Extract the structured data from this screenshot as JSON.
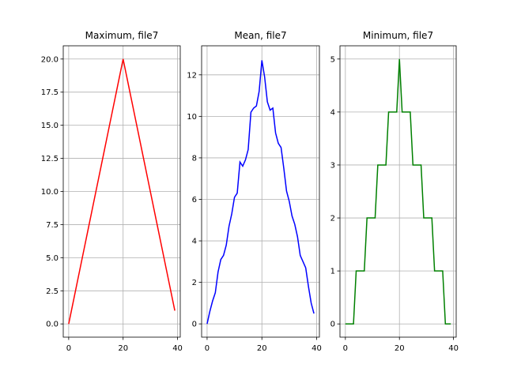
{
  "chart_data": [
    {
      "type": "line",
      "title": "Maximum, file7",
      "xlabel": "",
      "ylabel": "",
      "grid": true,
      "color": "#ff0000",
      "xlim": [
        -2,
        41
      ],
      "ylim": [
        -1,
        21
      ],
      "xticks": [
        0,
        20,
        40
      ],
      "yticks": [
        0.0,
        2.5,
        5.0,
        7.5,
        10.0,
        12.5,
        15.0,
        17.5,
        20.0
      ],
      "ytick_labels": [
        "0.0",
        "2.5",
        "5.0",
        "7.5",
        "10.0",
        "12.5",
        "15.0",
        "17.5",
        "20.0"
      ],
      "series": [
        {
          "x": [
            0,
            1,
            2,
            3,
            4,
            5,
            6,
            7,
            8,
            9,
            10,
            11,
            12,
            13,
            14,
            15,
            16,
            17,
            18,
            19,
            20,
            21,
            22,
            23,
            24,
            25,
            26,
            27,
            28,
            29,
            30,
            31,
            32,
            33,
            34,
            35,
            36,
            37,
            38,
            39
          ],
          "values": [
            0,
            1,
            2,
            3,
            4,
            5,
            6,
            7,
            8,
            9,
            10,
            11,
            12,
            13,
            14,
            15,
            16,
            17,
            18,
            19,
            20,
            19,
            18,
            17,
            16,
            15,
            14,
            13,
            12,
            11,
            10,
            9,
            8,
            7,
            6,
            5,
            4,
            3,
            2,
            1
          ]
        }
      ]
    },
    {
      "type": "line",
      "title": "Mean, file7",
      "xlabel": "",
      "ylabel": "",
      "grid": true,
      "color": "#0000ff",
      "xlim": [
        -2,
        41
      ],
      "ylim": [
        -0.64,
        13.4
      ],
      "xticks": [
        0,
        20,
        40
      ],
      "yticks": [
        0,
        2,
        4,
        6,
        8,
        10,
        12
      ],
      "ytick_labels": [
        "0",
        "2",
        "4",
        "6",
        "8",
        "10",
        "12"
      ],
      "series": [
        {
          "x": [
            0,
            1,
            2,
            3,
            4,
            5,
            6,
            7,
            8,
            9,
            10,
            11,
            12,
            13,
            14,
            15,
            16,
            17,
            18,
            19,
            20,
            21,
            22,
            23,
            24,
            25,
            26,
            27,
            28,
            29,
            30,
            31,
            32,
            33,
            34,
            35,
            36,
            37,
            38,
            39
          ],
          "values": [
            0,
            0.6,
            1.1,
            1.5,
            2.5,
            3.1,
            3.3,
            3.8,
            4.7,
            5.3,
            6.1,
            6.3,
            7.8,
            7.6,
            7.9,
            8.4,
            10.2,
            10.4,
            10.5,
            11.2,
            12.7,
            11.9,
            10.7,
            10.3,
            10.4,
            9.2,
            8.7,
            8.5,
            7.5,
            6.4,
            5.9,
            5.2,
            4.8,
            4.2,
            3.3,
            3.0,
            2.7,
            1.8,
            1.0,
            0.5
          ]
        }
      ]
    },
    {
      "type": "line",
      "title": "Minimum, file7",
      "xlabel": "",
      "ylabel": "",
      "grid": true,
      "color": "#008000",
      "xlim": [
        -2,
        41
      ],
      "ylim": [
        -0.25,
        5.25
      ],
      "xticks": [
        0,
        20,
        40
      ],
      "yticks": [
        0,
        1,
        2,
        3,
        4,
        5
      ],
      "ytick_labels": [
        "0",
        "1",
        "2",
        "3",
        "4",
        "5"
      ],
      "series": [
        {
          "x": [
            0,
            1,
            2,
            3,
            4,
            5,
            6,
            7,
            8,
            9,
            10,
            11,
            12,
            13,
            14,
            15,
            16,
            17,
            18,
            19,
            20,
            21,
            22,
            23,
            24,
            25,
            26,
            27,
            28,
            29,
            30,
            31,
            32,
            33,
            34,
            35,
            36,
            37,
            38,
            39
          ],
          "values": [
            0,
            0,
            0,
            0,
            1,
            1,
            1,
            1,
            2,
            2,
            2,
            2,
            3,
            3,
            3,
            3,
            4,
            4,
            4,
            4,
            5,
            4,
            4,
            4,
            4,
            3,
            3,
            3,
            3,
            2,
            2,
            2,
            2,
            1,
            1,
            1,
            1,
            0,
            0,
            0
          ]
        }
      ]
    }
  ]
}
